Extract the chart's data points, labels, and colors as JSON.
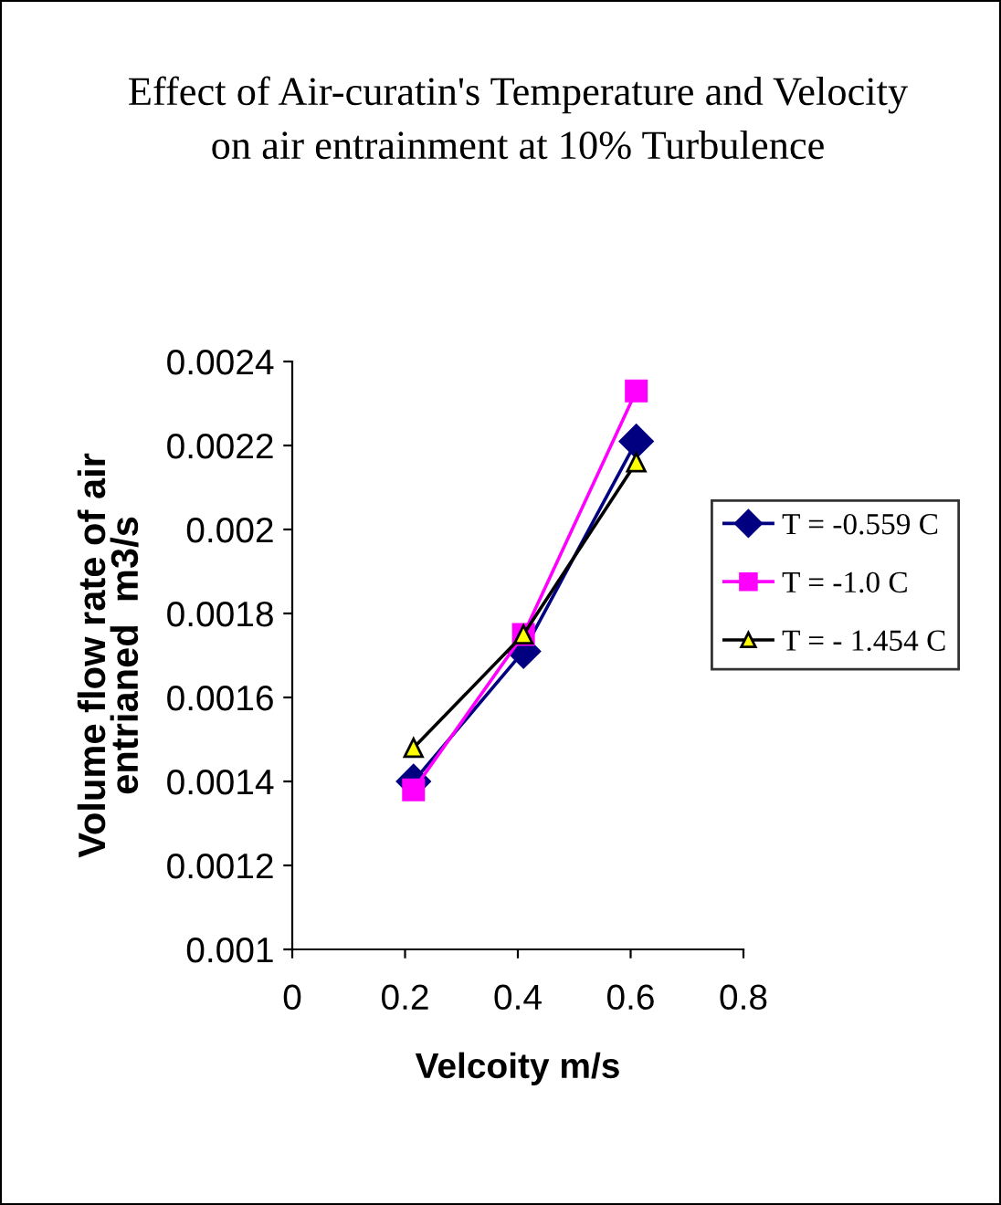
{
  "chart_data": {
    "type": "line",
    "title": "Effect of Air-curatin's Temperature and Velocity\non air entrainment at 10% Turbulence",
    "xlabel": "Velcoity m/s",
    "ylabel": "Volume flow rate of air\nentrianed  m3/s",
    "series": [
      {
        "name": "T = -0.559 C",
        "color": "#000080",
        "marker": "diamond",
        "x": [
          0.215,
          0.41,
          0.61
        ],
        "values": [
          0.0014,
          0.00171,
          0.00221
        ]
      },
      {
        "name": "T = -1.0 C",
        "color": "#ff00ff",
        "marker": "square",
        "x": [
          0.215,
          0.41,
          0.61
        ],
        "values": [
          0.00138,
          0.00175,
          0.00233
        ]
      },
      {
        "name": "T = - 1.454 C",
        "color": "#000000",
        "marker": "triangle",
        "x": [
          0.215,
          0.41,
          0.61
        ],
        "values": [
          0.00148,
          0.00175,
          0.00216
        ]
      }
    ],
    "xlim": [
      0,
      0.8
    ],
    "xticks": [
      {
        "value": 0,
        "label": "0"
      },
      0.2,
      0.4,
      0.6,
      0.8
    ],
    "ylim": [
      0.001,
      0.0024
    ],
    "yticks": [
      0.001,
      0.0012,
      0.0014,
      0.0016,
      0.0018,
      0.002,
      0.0022,
      0.0024
    ],
    "grid": false,
    "legend": "right",
    "line_style": "solid"
  }
}
